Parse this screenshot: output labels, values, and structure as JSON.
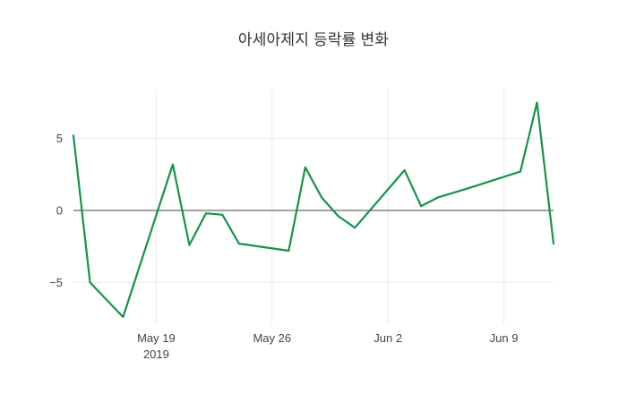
{
  "page": {
    "background": "#ffffff"
  },
  "chart_data": {
    "type": "line",
    "title": "아세아제지 등락률 변화",
    "series_name": "등락률",
    "x": [
      "2019-05-14",
      "2019-05-15",
      "2019-05-17",
      "2019-05-20",
      "2019-05-21",
      "2019-05-22",
      "2019-05-23",
      "2019-05-24",
      "2019-05-27",
      "2019-05-28",
      "2019-05-29",
      "2019-05-30",
      "2019-05-31",
      "2019-06-03",
      "2019-06-04",
      "2019-06-05",
      "2019-06-07",
      "2019-06-10",
      "2019-06-11",
      "2019-06-12"
    ],
    "values": [
      5.2,
      -5.0,
      -7.4,
      3.2,
      -2.4,
      -0.2,
      -0.3,
      -2.3,
      -2.8,
      3.0,
      0.9,
      -0.4,
      -1.2,
      2.8,
      0.3,
      0.9,
      1.6,
      2.7,
      7.5,
      -2.3
    ],
    "x_range": [
      "2019-05-14",
      "2019-06-12"
    ],
    "ylim": [
      -7.9,
      8.4
    ],
    "y_ticks": [
      {
        "label": "5",
        "value": 5
      },
      {
        "label": "0",
        "value": 0
      },
      {
        "label": "−5",
        "value": -5
      }
    ],
    "x_ticks": [
      {
        "label": "May 19",
        "sublabel": "2019",
        "date": "2019-05-19"
      },
      {
        "label": "May 26",
        "sublabel": "",
        "date": "2019-05-26"
      },
      {
        "label": "Jun 2",
        "sublabel": "",
        "date": "2019-06-02"
      },
      {
        "label": "Jun 9",
        "sublabel": "",
        "date": "2019-06-09"
      }
    ],
    "line_color": "#15934a",
    "grid_color": "#ebebeb",
    "zero_line_color": "#444444",
    "tick_label_color": "#444444",
    "grid": true,
    "zero_line": true,
    "legend": "none"
  }
}
